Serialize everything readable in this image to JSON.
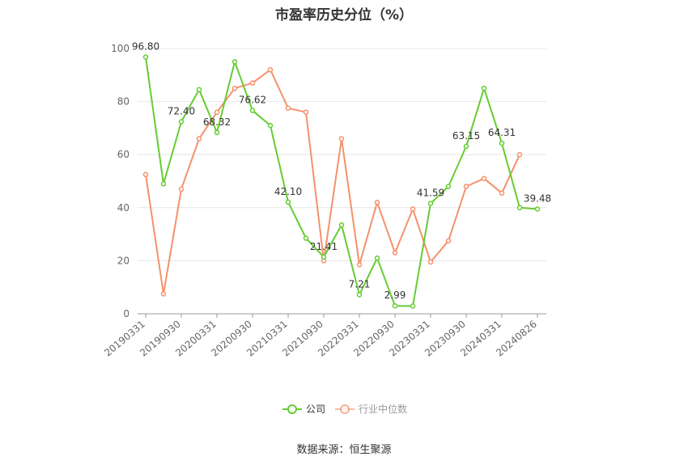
{
  "title": "市盈率历史分位（%）",
  "source": "数据来源：恒生聚源",
  "legend": {
    "company": "公司",
    "industry": "行业中位数"
  },
  "colors": {
    "company": "#65cc33",
    "industry": "#f5916a",
    "grid": "#e6e6e6",
    "axis": "#999999"
  },
  "chart_data": {
    "type": "line",
    "title": "市盈率历史分位（%）",
    "ylim": [
      0,
      100
    ],
    "yticks": [
      0,
      20,
      40,
      60,
      80,
      100
    ],
    "x_tick_labels": [
      "20190331",
      "20190930",
      "20200331",
      "20200930",
      "20210331",
      "20210930",
      "20220331",
      "20220930",
      "20230331",
      "20230930",
      "20240331",
      "20240826"
    ],
    "grid": true,
    "legend_position": "bottom",
    "series": [
      {
        "name": "公司",
        "values": [
          96.8,
          49.0,
          72.4,
          84.5,
          68.32,
          95.0,
          76.62,
          71.0,
          42.1,
          28.5,
          21.41,
          33.5,
          7.21,
          21.0,
          2.99,
          2.9,
          41.59,
          48.0,
          63.15,
          85.0,
          64.31,
          40.0,
          39.48
        ],
        "labels": {
          "0": "96.80",
          "2": "72.40",
          "4": "68.32",
          "6": "76.62",
          "8": "42.10",
          "10": "21.41",
          "12": "7.21",
          "14": "2.99",
          "16": "41.59",
          "18": "63.15",
          "20": "64.31",
          "22": "39.48"
        }
      },
      {
        "name": "行业中位数",
        "values": [
          52.5,
          7.5,
          47.0,
          66.0,
          76.0,
          85.0,
          87.0,
          92.0,
          77.5,
          76.0,
          20.0,
          66.0,
          18.5,
          42.0,
          23.0,
          39.5,
          19.5,
          27.5,
          48.0,
          51.0,
          45.5,
          60.0,
          null
        ]
      }
    ]
  }
}
